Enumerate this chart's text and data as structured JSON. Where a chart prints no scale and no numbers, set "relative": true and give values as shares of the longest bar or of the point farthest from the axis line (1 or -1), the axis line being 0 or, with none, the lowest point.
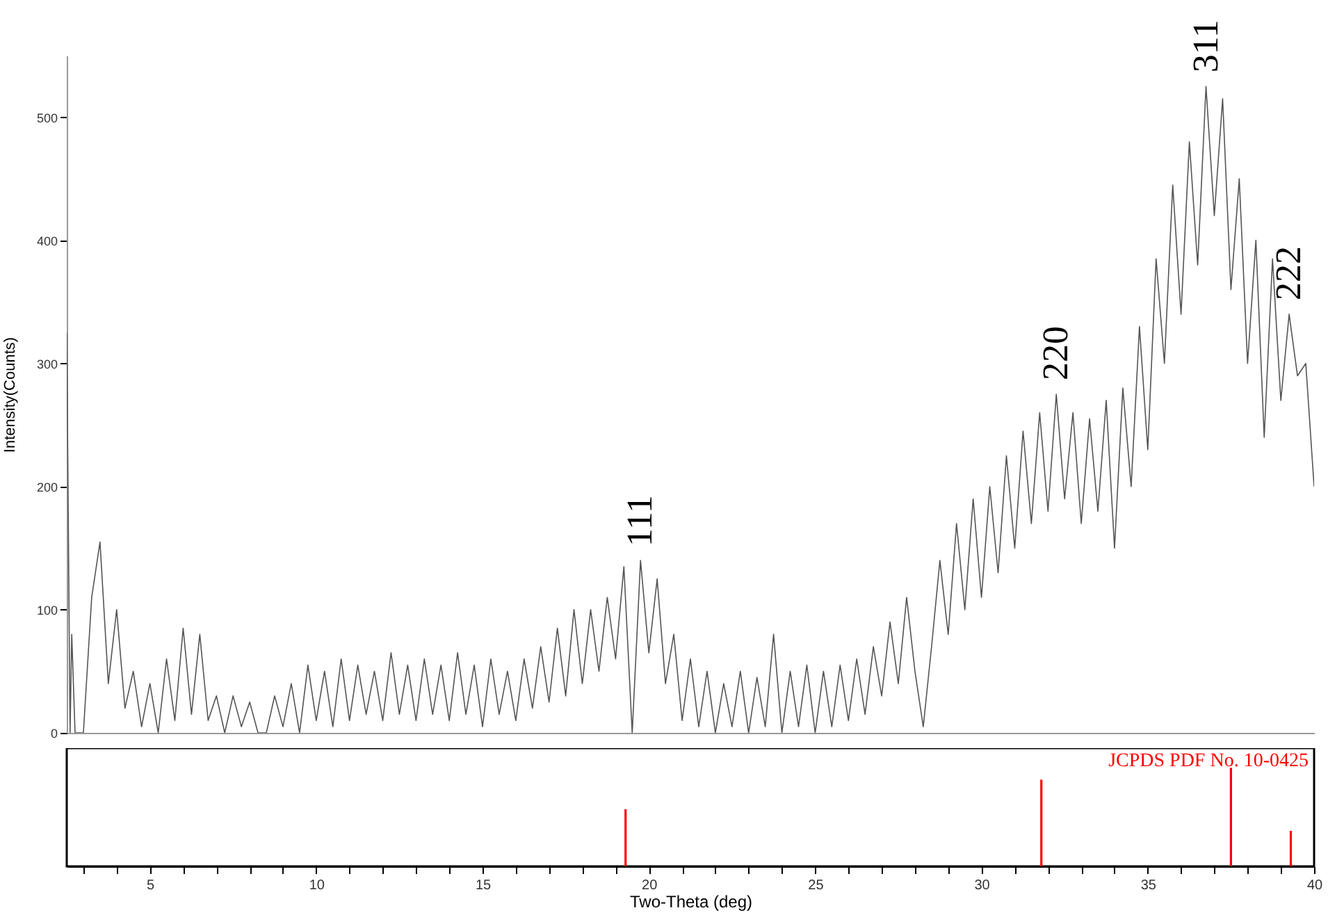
{
  "chart_data": [
    {
      "type": "line",
      "ylabel": "Intensity(Counts)",
      "xlim": [
        2.5,
        40
      ],
      "ylim": [
        0,
        550
      ],
      "yticks": [
        0,
        100,
        200,
        300,
        400,
        500
      ],
      "tick_labels": "y",
      "grid": false,
      "series": [
        {
          "color": "#555555",
          "x": [
            2.5,
            2.6,
            2.65,
            2.75,
            3.0,
            3.25,
            3.5,
            3.75,
            4.0,
            4.25,
            4.5,
            4.75,
            5.0,
            5.25,
            5.5,
            5.75,
            6.0,
            6.25,
            6.5,
            6.75,
            7.0,
            7.25,
            7.5,
            7.75,
            8.0,
            8.25,
            8.5,
            8.75,
            9.0,
            9.25,
            9.5,
            9.75,
            10.0,
            10.25,
            10.5,
            10.75,
            11.0,
            11.25,
            11.5,
            11.75,
            12.0,
            12.25,
            12.5,
            12.75,
            13.0,
            13.25,
            13.5,
            13.75,
            14.0,
            14.25,
            14.5,
            14.75,
            15.0,
            15.25,
            15.5,
            15.75,
            16.0,
            16.25,
            16.5,
            16.75,
            17.0,
            17.25,
            17.5,
            17.75,
            18.0,
            18.25,
            18.5,
            18.75,
            19.0,
            19.25,
            19.5,
            19.75,
            20.0,
            20.25,
            20.5,
            20.75,
            21.0,
            21.25,
            21.5,
            21.75,
            22.0,
            22.25,
            22.5,
            22.75,
            23.0,
            23.25,
            23.5,
            23.75,
            24.0,
            24.25,
            24.5,
            24.75,
            25.0,
            25.25,
            25.5,
            25.75,
            26.0,
            26.25,
            26.5,
            26.75,
            27.0,
            27.25,
            27.5,
            27.75,
            28.0,
            28.25,
            28.5,
            28.75,
            29.0,
            29.25,
            29.5,
            29.75,
            30.0,
            30.25,
            30.5,
            30.75,
            31.0,
            31.25,
            31.5,
            31.75,
            32.0,
            32.25,
            32.5,
            32.75,
            33.0,
            33.25,
            33.5,
            33.75,
            34.0,
            34.25,
            34.5,
            34.75,
            35.0,
            35.25,
            35.5,
            35.75,
            36.0,
            36.25,
            36.5,
            36.75,
            37.0,
            37.25,
            37.5,
            37.75,
            38.0,
            38.25,
            38.5,
            38.75,
            39.0,
            39.25,
            39.5,
            39.75,
            40.0
          ],
          "values": [
            325,
            0,
            80,
            0,
            0,
            110,
            155,
            40,
            100,
            20,
            50,
            5,
            40,
            0,
            60,
            10,
            85,
            15,
            80,
            10,
            30,
            0,
            30,
            5,
            25,
            0,
            0,
            30,
            5,
            40,
            0,
            55,
            10,
            50,
            5,
            60,
            10,
            55,
            15,
            50,
            10,
            65,
            15,
            55,
            10,
            60,
            15,
            55,
            10,
            65,
            15,
            55,
            5,
            60,
            15,
            50,
            10,
            60,
            20,
            70,
            25,
            85,
            30,
            100,
            40,
            100,
            50,
            110,
            60,
            135,
            0,
            140,
            65,
            125,
            40,
            80,
            10,
            60,
            5,
            50,
            0,
            40,
            5,
            50,
            0,
            45,
            5,
            80,
            0,
            50,
            5,
            55,
            0,
            50,
            5,
            55,
            10,
            60,
            15,
            70,
            30,
            90,
            40,
            110,
            50,
            5,
            70,
            140,
            80,
            170,
            100,
            190,
            110,
            200,
            130,
            225,
            150,
            245,
            170,
            260,
            180,
            275,
            190,
            260,
            170,
            255,
            180,
            270,
            150,
            280,
            200,
            330,
            230,
            385,
            300,
            445,
            340,
            480,
            380,
            525,
            420,
            515,
            360,
            450,
            300,
            400,
            240,
            385,
            270,
            340,
            290,
            300,
            200
          ]
        }
      ],
      "annotations": [
        {
          "text": "111",
          "x": 19.75,
          "y": 140
        },
        {
          "text": "220",
          "x": 32.25,
          "y": 275
        },
        {
          "text": "311",
          "x": 36.75,
          "y": 525
        },
        {
          "text": "222",
          "x": 39.25,
          "y": 340
        }
      ]
    },
    {
      "type": "bar",
      "relative": true,
      "xlabel": "Two-Theta (deg)",
      "xlim": [
        2.5,
        40
      ],
      "tick_labels": "x",
      "grid": false,
      "xticks": [
        {
          "value": 3,
          "label": null
        },
        {
          "value": 4,
          "label": null
        },
        5,
        {
          "value": 6,
          "label": null
        },
        {
          "value": 7,
          "label": null
        },
        {
          "value": 8,
          "label": null
        },
        {
          "value": 9,
          "label": null
        },
        10,
        {
          "value": 11,
          "label": null
        },
        {
          "value": 12,
          "label": null
        },
        {
          "value": 13,
          "label": null
        },
        {
          "value": 14,
          "label": null
        },
        15,
        {
          "value": 16,
          "label": null
        },
        {
          "value": 17,
          "label": null
        },
        {
          "value": 18,
          "label": null
        },
        {
          "value": 19,
          "label": null
        },
        20,
        {
          "value": 21,
          "label": null
        },
        {
          "value": 22,
          "label": null
        },
        {
          "value": 23,
          "label": null
        },
        {
          "value": 24,
          "label": null
        },
        25,
        {
          "value": 26,
          "label": null
        },
        {
          "value": 27,
          "label": null
        },
        {
          "value": 28,
          "label": null
        },
        {
          "value": 29,
          "label": null
        },
        30,
        {
          "value": 31,
          "label": null
        },
        {
          "value": 32,
          "label": null
        },
        {
          "value": 33,
          "label": null
        },
        {
          "value": 34,
          "label": null
        },
        35,
        {
          "value": 36,
          "label": null
        },
        {
          "value": 37,
          "label": null
        },
        {
          "value": 38,
          "label": null
        },
        {
          "value": 39,
          "label": null
        },
        40
      ],
      "x": [
        19.3,
        31.8,
        37.5,
        39.3
      ],
      "values": [
        0.58,
        0.88,
        1,
        0.36
      ],
      "color": "#ff0000",
      "annotations": [
        "JCPDS PDF No. 10-0425"
      ]
    }
  ]
}
